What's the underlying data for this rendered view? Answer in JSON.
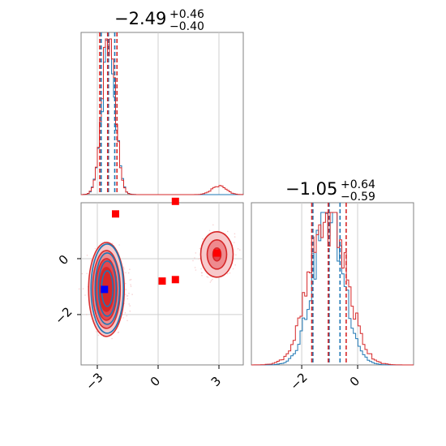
{
  "chart_data": {
    "type": "corner",
    "parameters": 2,
    "colors": {
      "series_a": "#1f77b4",
      "series_b": "#d62728",
      "grid": "#cfcfcf",
      "frame": "#808080"
    },
    "grid": true,
    "titles": [
      {
        "value": "−2.49",
        "plus": "+0.46",
        "minus": "−0.40"
      },
      {
        "value": "−1.05",
        "plus": "+0.64",
        "minus": "−0.59"
      }
    ],
    "x_ticks_p0": {
      "values": [
        -3,
        0,
        3
      ],
      "labels": [
        "−3",
        "0",
        "3"
      ]
    },
    "x_ticks_p1": {
      "values": [
        -2,
        0
      ],
      "labels": [
        "−2",
        "0"
      ]
    },
    "y_ticks_p1": {
      "values": [
        0,
        -2
      ],
      "labels": [
        "0",
        "−2"
      ]
    },
    "p0_range": [
      -3.8,
      4.2
    ],
    "p1_range": [
      -3.8,
      2.0
    ],
    "hist_p0": {
      "bins": [
        -3.8,
        4.2
      ],
      "series_b_quantiles": [
        -2.88,
        -2.49,
        -2.03
      ],
      "series_a_quantiles": [
        -2.81,
        -2.45,
        -2.14
      ]
    },
    "hist_p1": {
      "series_b_quantiles": [
        -1.64,
        -1.05,
        -0.41
      ],
      "series_a_quantiles": [
        -1.6,
        -1.02,
        -0.63
      ]
    },
    "scatter_markers": {
      "red": [
        {
          "x": -2.1,
          "y": 1.6
        },
        {
          "x": 0.85,
          "y": 2.05
        },
        {
          "x": 0.2,
          "y": -0.8
        },
        {
          "x": 0.85,
          "y": -0.75
        },
        {
          "x": 2.9,
          "y": 0.2
        }
      ],
      "blue": [
        {
          "x": -2.65,
          "y": -1.1
        }
      ]
    }
  }
}
